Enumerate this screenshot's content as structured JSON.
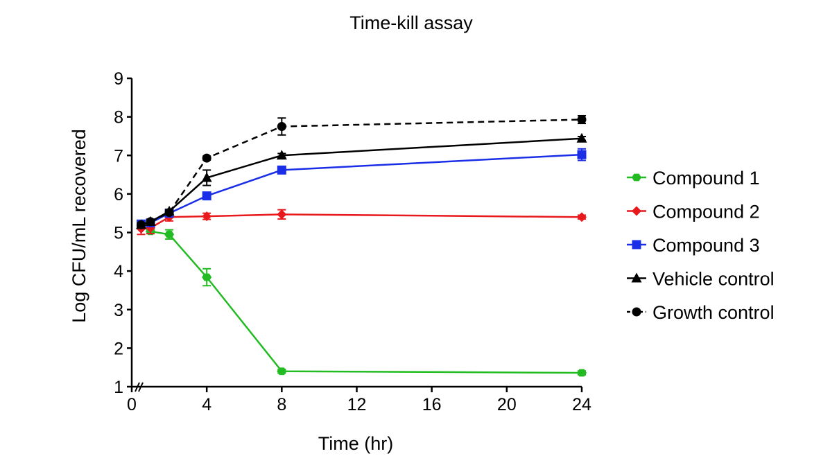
{
  "chart_data": {
    "type": "line",
    "title": "Time-kill assay",
    "xlabel": "Time (hr)",
    "ylabel": "Log CFU/mL recovered",
    "xlim": [
      0,
      24
    ],
    "ylim": [
      1,
      9
    ],
    "x_ticks": [
      0,
      4,
      8,
      12,
      16,
      20,
      24
    ],
    "y_ticks": [
      1,
      2,
      3,
      4,
      5,
      6,
      7,
      8,
      9
    ],
    "x_axis_break": true,
    "grid": false,
    "legend_position": "right",
    "series": [
      {
        "name": "Compound 1",
        "color": "#22bb22",
        "marker": "hexagon",
        "dash": "solid",
        "points": [
          {
            "x": 0.5,
            "y": 5.18,
            "err": 0.08
          },
          {
            "x": 1,
            "y": 5.03,
            "err": 0.05
          },
          {
            "x": 2,
            "y": 4.95,
            "err": 0.12
          },
          {
            "x": 4,
            "y": 3.84,
            "err": 0.22
          },
          {
            "x": 8,
            "y": 1.4,
            "err": 0.05
          },
          {
            "x": 24,
            "y": 1.36,
            "err": 0.05
          }
        ]
      },
      {
        "name": "Compound 2",
        "color": "#e8191c",
        "marker": "diamond",
        "dash": "solid",
        "points": [
          {
            "x": 0.5,
            "y": 5.1,
            "err": 0.15
          },
          {
            "x": 1,
            "y": 5.12,
            "err": 0.15
          },
          {
            "x": 2,
            "y": 5.4,
            "err": 0.1
          },
          {
            "x": 4,
            "y": 5.42,
            "err": 0.08
          },
          {
            "x": 8,
            "y": 5.47,
            "err": 0.12
          },
          {
            "x": 24,
            "y": 5.4,
            "err": 0.05
          }
        ]
      },
      {
        "name": "Compound 3",
        "color": "#1a2ee8",
        "marker": "square",
        "dash": "solid",
        "points": [
          {
            "x": 0.5,
            "y": 5.22,
            "err": 0.05
          },
          {
            "x": 1,
            "y": 5.25,
            "err": 0.05
          },
          {
            "x": 2,
            "y": 5.5,
            "err": 0.05
          },
          {
            "x": 4,
            "y": 5.95,
            "err": 0.08
          },
          {
            "x": 8,
            "y": 6.62,
            "err": 0.05
          },
          {
            "x": 24,
            "y": 7.02,
            "err": 0.15
          }
        ]
      },
      {
        "name": "Vehicle control",
        "color": "#000000",
        "marker": "triangle",
        "dash": "solid",
        "points": [
          {
            "x": 0.5,
            "y": 5.2,
            "err": 0.05
          },
          {
            "x": 1,
            "y": 5.28,
            "err": 0.05
          },
          {
            "x": 2,
            "y": 5.55,
            "err": 0.05
          },
          {
            "x": 4,
            "y": 6.42,
            "err": 0.2
          },
          {
            "x": 8,
            "y": 7.0,
            "err": 0.05
          },
          {
            "x": 24,
            "y": 7.44,
            "err": 0.05
          }
        ]
      },
      {
        "name": "Growth control",
        "color": "#000000",
        "marker": "circle",
        "dash": "dashed",
        "points": [
          {
            "x": 0.5,
            "y": 5.2,
            "err": 0.05
          },
          {
            "x": 1,
            "y": 5.28,
            "err": 0.05
          },
          {
            "x": 2,
            "y": 5.52,
            "err": 0.05
          },
          {
            "x": 4,
            "y": 6.93,
            "err": 0.05
          },
          {
            "x": 8,
            "y": 7.75,
            "err": 0.22
          },
          {
            "x": 24,
            "y": 7.93,
            "err": 0.1
          }
        ]
      }
    ]
  }
}
